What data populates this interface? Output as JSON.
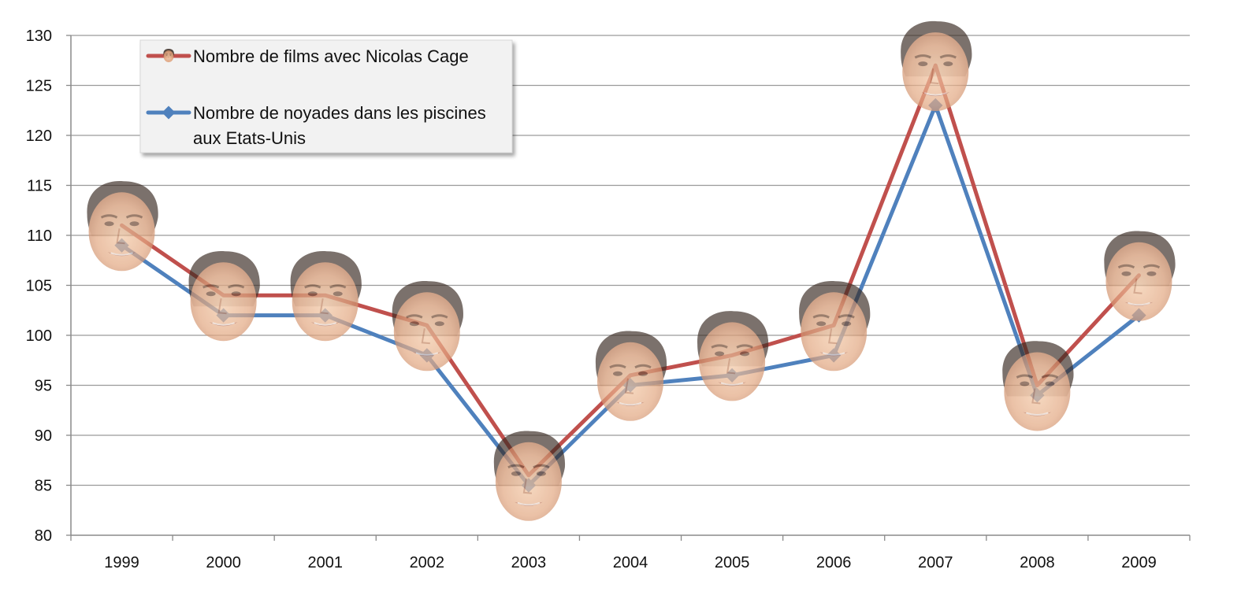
{
  "chart_data": {
    "type": "line",
    "categories": [
      "1999",
      "2000",
      "2001",
      "2002",
      "2003",
      "2004",
      "2005",
      "2006",
      "2007",
      "2008",
      "2009"
    ],
    "ylim": [
      80,
      130
    ],
    "yticks": [
      80,
      85,
      90,
      95,
      100,
      105,
      110,
      115,
      120,
      125,
      130
    ],
    "grid": true,
    "legend_position": "top-left",
    "markers": "face-icon",
    "series": [
      {
        "name": "Nombre de films avec Nicolas Cage",
        "color": "#c0504d",
        "marker": "face-icon",
        "values": [
          111,
          104,
          104,
          101,
          86,
          96,
          98,
          101,
          127,
          95,
          106
        ]
      },
      {
        "name": "Nombre de noyades dans les piscines aux Etats-Unis",
        "name_lines": [
          "Nombre de noyades dans les piscines",
          "aux Etats-Unis"
        ],
        "color": "#4f81bd",
        "marker": "diamond",
        "values": [
          109,
          102,
          102,
          98,
          85,
          95,
          96,
          98,
          123,
          94,
          102
        ]
      }
    ]
  }
}
